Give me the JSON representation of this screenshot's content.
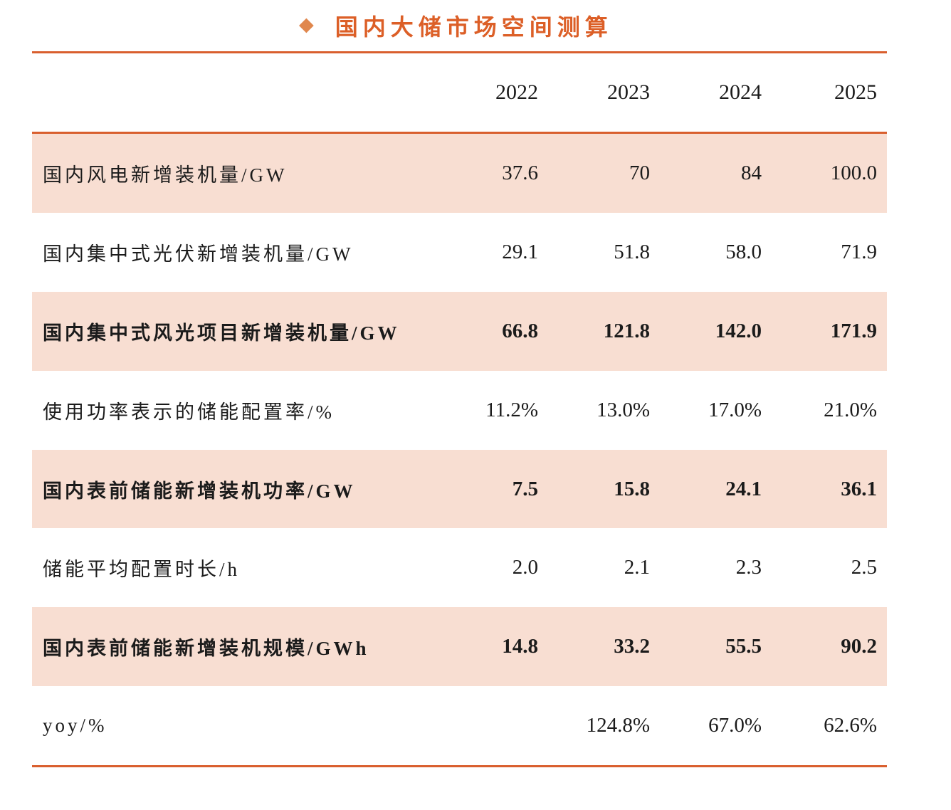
{
  "title": {
    "bullet_icon": "diamond",
    "text": "国内大储市场空间测算"
  },
  "colors": {
    "title_orange": "#dc5f27",
    "diamond_orange": "#e0874d",
    "rule_orange": "#d95f2e",
    "row_shade_pink": "#f8ded2",
    "text_black": "#1b1b1b"
  },
  "chart_data": {
    "type": "table",
    "title": "国内大储市场空间测算",
    "columns": [
      "2022",
      "2023",
      "2024",
      "2025"
    ],
    "rows": [
      {
        "label": "国内风电新增装机量/GW",
        "values": [
          "37.6",
          "70",
          "84",
          "100.0"
        ]
      },
      {
        "label": "国内集中式光伏新增装机量/GW",
        "values": [
          "29.1",
          "51.8",
          "58.0",
          "71.9"
        ]
      },
      {
        "label": "国内集中式风光项目新增装机量/GW",
        "values": [
          "66.8",
          "121.8",
          "142.0",
          "171.9"
        ]
      },
      {
        "label": "使用功率表示的储能配置率/%",
        "values": [
          "11.2%",
          "13.0%",
          "17.0%",
          "21.0%"
        ]
      },
      {
        "label": "国内表前储能新增装机功率/GW",
        "values": [
          "7.5",
          "15.8",
          "24.1",
          "36.1"
        ]
      },
      {
        "label": "储能平均配置时长/h",
        "values": [
          "2.0",
          "2.1",
          "2.3",
          "2.5"
        ]
      },
      {
        "label": "国内表前储能新增装机规模/GWh",
        "values": [
          "14.8",
          "33.2",
          "55.5",
          "90.2"
        ]
      },
      {
        "label": "yoy/%",
        "values": [
          "",
          "124.8%",
          "67.0%",
          "62.6%"
        ]
      }
    ]
  }
}
